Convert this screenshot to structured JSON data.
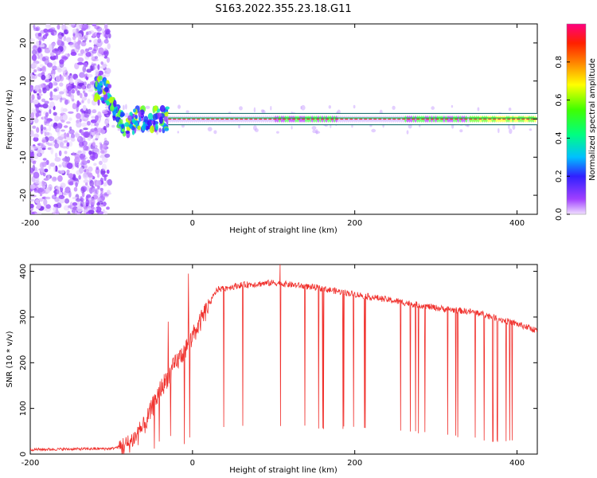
{
  "title": "S163.2022.355.23.18.G11",
  "colors": {
    "snr_line": "#f0302c",
    "band_edge": "#006060",
    "band_center": "#e03030"
  },
  "chart_data": [
    {
      "type": "heatmap",
      "xlabel": "Height of straight line (km)",
      "ylabel": "Frequency (Hz)",
      "xlim": [
        -200,
        425
      ],
      "ylim": [
        -25,
        25
      ],
      "xticks": [
        -200,
        0,
        200,
        400
      ],
      "yticks": [
        -20,
        -10,
        0,
        10,
        20
      ],
      "grid": false,
      "colorbar": {
        "label": "Normalized spectral amplitude",
        "range": [
          0,
          1
        ],
        "ticks": [
          0.0,
          0.2,
          0.4,
          0.6,
          0.8
        ],
        "colormap": "rainbow (violet - blue - cyan - green - yellow - red - magenta)"
      },
      "features": {
        "noise_region_x": [
          -200,
          -110
        ],
        "descending_track": {
          "x": [
            -120,
            -110,
            -100,
            -90,
            -80,
            -70,
            -60,
            -50,
            -40,
            -30
          ],
          "y": [
            8,
            8,
            5,
            0,
            -2,
            0,
            0,
            0,
            0,
            0
          ]
        },
        "band_center_hz": 0,
        "band_half_width_hz": 1.5,
        "steady_band_x": [
          -30,
          425
        ]
      }
    },
    {
      "type": "line",
      "xlabel": "Height of straight line (km)",
      "ylabel": "SNR (10 * v/v)",
      "xlim": [
        -200,
        425
      ],
      "ylim": [
        0,
        415
      ],
      "xticks": [
        -200,
        0,
        200,
        400
      ],
      "yticks": [
        0,
        100,
        200,
        300,
        400
      ],
      "grid": false,
      "series": [
        {
          "envelope": {
            "x": [
              -200,
              -100,
              -80,
              -60,
              -40,
              -20,
              -5,
              10,
              30,
              60,
              100,
              150,
              200,
              250,
              300,
              350,
              400,
              425
            ],
            "y": [
              10,
              12,
              20,
              60,
              140,
              200,
              240,
              290,
              360,
              370,
              375,
              365,
              350,
              335,
              320,
              310,
              285,
              270
            ]
          },
          "dropout_floor": {
            "x": [
              20,
              100,
              150,
              200,
              250,
              300,
              350,
              410
            ],
            "y": [
              55,
              60,
              55,
              52,
              48,
              40,
              30,
              20
            ]
          },
          "spikes": [
            {
              "x": -30,
              "y": 290
            },
            {
              "x": -5,
              "y": 395
            },
            {
              "x": 108,
              "y": 415
            }
          ]
        }
      ]
    }
  ]
}
